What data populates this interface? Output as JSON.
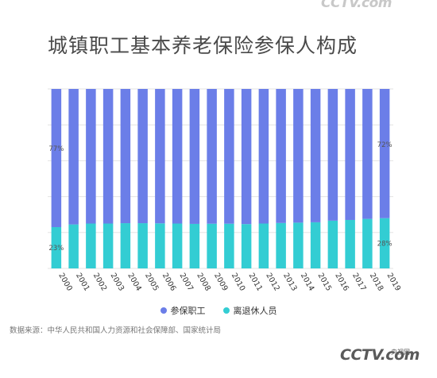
{
  "watermark_top": "CCTV.com",
  "logo": {
    "text": "CCTV.com",
    "sub": "央视网"
  },
  "source_note": "数据来源：中华人民共和国人力资源和社会保障部、国家统计局",
  "colors": {
    "workers": "#6b7ee8",
    "retirees": "#33cdd3"
  },
  "chart_data": {
    "type": "bar",
    "stacked": true,
    "percent": true,
    "title": "城镇职工基本养老保险参保人构成",
    "categories": [
      "2000",
      "2001",
      "2002",
      "2003",
      "2004",
      "2005",
      "2006",
      "2007",
      "2008",
      "2009",
      "2010",
      "2011",
      "2012",
      "2013",
      "2014",
      "2015",
      "2016",
      "2017",
      "2018",
      "2019"
    ],
    "series": [
      {
        "name": "参保职工",
        "color": "#6b7ee8",
        "values": [
          77,
          75.5,
          75,
          75,
          74.8,
          74.8,
          74.9,
          75,
          75.2,
          75.1,
          75.1,
          75.3,
          75,
          74.7,
          74.5,
          74.3,
          73.4,
          73,
          72.4,
          72
        ]
      },
      {
        "name": "离退休人员",
        "color": "#33cdd3",
        "values": [
          23,
          24.5,
          25,
          25,
          25.2,
          25.2,
          25.1,
          25,
          24.8,
          24.9,
          24.9,
          24.7,
          25,
          25.3,
          25.5,
          25.7,
          26.6,
          27,
          27.6,
          28
        ]
      }
    ],
    "data_labels": [
      {
        "category": "2000",
        "series": "参保职工",
        "text": "77%"
      },
      {
        "category": "2000",
        "series": "离退休人员",
        "text": "23%"
      },
      {
        "category": "2019",
        "series": "参保职工",
        "text": "72%"
      },
      {
        "category": "2019",
        "series": "离退休人员",
        "text": "28%"
      }
    ],
    "ylim": [
      0,
      100
    ],
    "legend": "bottom",
    "grid": true
  }
}
